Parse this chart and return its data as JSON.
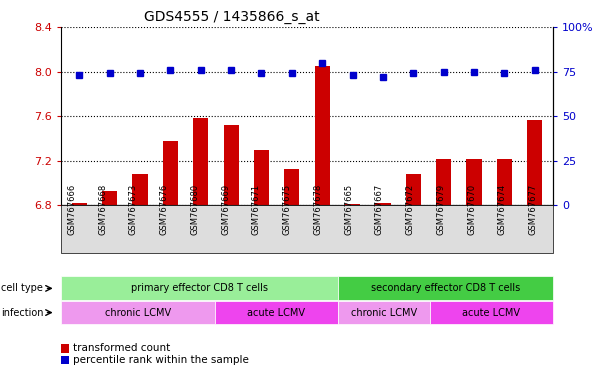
{
  "title": "GDS4555 / 1435866_s_at",
  "samples": [
    "GSM767666",
    "GSM767668",
    "GSM767673",
    "GSM767676",
    "GSM767680",
    "GSM767669",
    "GSM767671",
    "GSM767675",
    "GSM767678",
    "GSM767665",
    "GSM767667",
    "GSM767672",
    "GSM767679",
    "GSM767670",
    "GSM767674",
    "GSM767677"
  ],
  "red_values": [
    6.82,
    6.93,
    7.08,
    7.38,
    7.58,
    7.52,
    7.3,
    7.13,
    8.05,
    6.81,
    6.82,
    7.08,
    7.22,
    7.22,
    7.22,
    7.57
  ],
  "blue_values": [
    73,
    74,
    74,
    76,
    76,
    76,
    74,
    74,
    80,
    73,
    72,
    74,
    75,
    75,
    74,
    76
  ],
  "ylim_left": [
    6.8,
    8.4
  ],
  "ylim_right": [
    0,
    100
  ],
  "yticks_left": [
    6.8,
    7.2,
    7.6,
    8.0,
    8.4
  ],
  "yticks_right": [
    0,
    25,
    50,
    75,
    100
  ],
  "yticklabels_right": [
    "0",
    "25",
    "50",
    "75",
    "100%"
  ],
  "bar_color": "#cc0000",
  "dot_color": "#0000cc",
  "baseline": 6.8,
  "cell_type_groups": [
    {
      "label": "primary effector CD8 T cells",
      "start": 0,
      "end": 9,
      "color": "#99ee99"
    },
    {
      "label": "secondary effector CD8 T cells",
      "start": 9,
      "end": 16,
      "color": "#44cc44"
    }
  ],
  "infection_groups": [
    {
      "label": "chronic LCMV",
      "start": 0,
      "end": 5,
      "color": "#ee99ee"
    },
    {
      "label": "acute LCMV",
      "start": 5,
      "end": 9,
      "color": "#ee44ee"
    },
    {
      "label": "chronic LCMV",
      "start": 9,
      "end": 12,
      "color": "#ee99ee"
    },
    {
      "label": "acute LCMV",
      "start": 12,
      "end": 16,
      "color": "#ee44ee"
    }
  ],
  "legend_red": "transformed count",
  "legend_blue": "percentile rank within the sample",
  "cell_type_label": "cell type",
  "infection_label": "infection",
  "background_color": "#ffffff",
  "plot_bg": "#ffffff",
  "tick_label_color_left": "#cc0000",
  "tick_label_color_right": "#0000cc",
  "gray_bg": "#dddddd",
  "bar_width": 0.5,
  "dot_size": 4
}
